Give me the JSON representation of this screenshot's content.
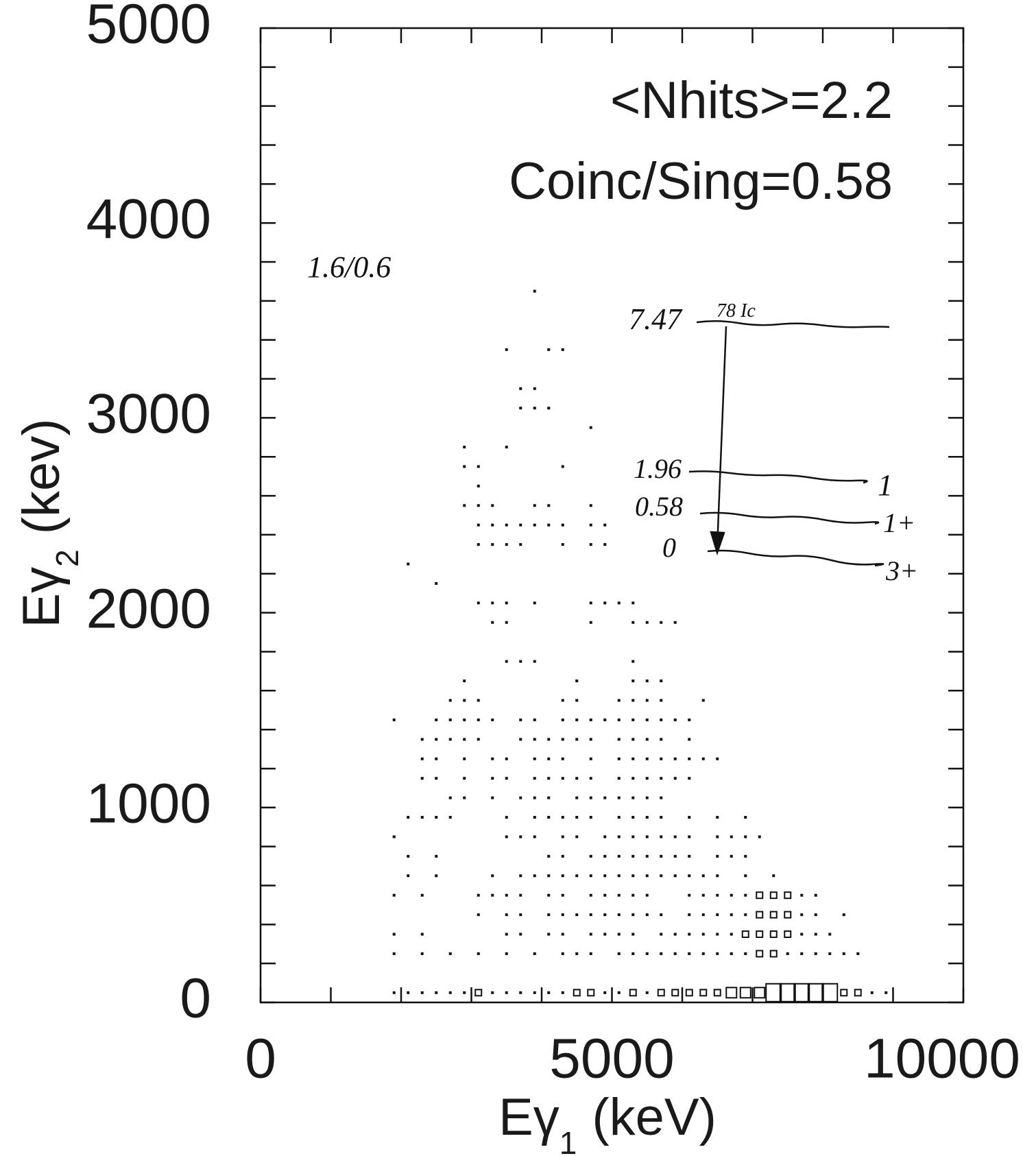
{
  "chart_data": {
    "type": "scatter",
    "xlabel": {
      "text": "Eγ",
      "sub": "1",
      "unit": "(keV)"
    },
    "ylabel": {
      "text": "Eγ",
      "sub": "2",
      "unit": "(kev)"
    },
    "xlim": [
      0,
      10000
    ],
    "ylim": [
      0,
      5000
    ],
    "xticks": [
      0,
      5000,
      10000
    ],
    "yticks": [
      0,
      1000,
      2000,
      3000,
      4000,
      5000
    ],
    "xminorticks": [
      1000,
      2000,
      3000,
      4000,
      6000,
      7000,
      8000,
      9000
    ],
    "yminorticks": [
      200,
      400,
      600,
      800,
      1200,
      1400,
      1600,
      1800,
      2200,
      2400,
      2600,
      2800,
      3200,
      3400,
      3600,
      3800,
      4200,
      4400,
      4600,
      4800
    ],
    "color": "#111111",
    "annotations": [
      "<Nhits>=2.2",
      "Coinc/Sing=0.58",
      "1.6/0.6"
    ],
    "level_diagram": {
      "top": "7.47",
      "top_note": "78 Ic",
      "levels": [
        "1.96",
        "0.58",
        "0"
      ],
      "spins": [
        "1",
        "1+",
        "3+"
      ]
    },
    "rows": [
      {
        "y": 50,
        "x": [
          1900,
          2100,
          2300,
          2500,
          2700,
          2900,
          3100,
          3300,
          3500,
          3700,
          3900,
          4100,
          4300,
          4500,
          4700,
          4900,
          5100,
          5300,
          5500,
          5700,
          5900,
          6100,
          6300,
          6500,
          6700,
          6900,
          7100,
          7300,
          7500,
          7700,
          7900,
          8100,
          8300,
          8500,
          8700,
          8900
        ],
        "counts": [
          1,
          1,
          1,
          1,
          1,
          1,
          2,
          1,
          1,
          1,
          1,
          1,
          1,
          2,
          2,
          1,
          1,
          2,
          1,
          2,
          2,
          2,
          2,
          2,
          3,
          3,
          3,
          4,
          4,
          4,
          4,
          4,
          2,
          2,
          1,
          1
        ]
      },
      {
        "y": 250,
        "x": [
          1900,
          2300,
          2700,
          3100,
          3500,
          3900,
          4300,
          4500,
          4700,
          5100,
          5300,
          5500,
          5700,
          5900,
          6100,
          6300,
          6500,
          6700,
          6900,
          7100,
          7300,
          7500,
          7700,
          7900,
          8100,
          8300,
          8500
        ],
        "counts": [
          1,
          1,
          1,
          1,
          1,
          1,
          1,
          1,
          1,
          1,
          1,
          1,
          1,
          1,
          1,
          1,
          1,
          1,
          1,
          2,
          2,
          1,
          1,
          1,
          1,
          1,
          1
        ]
      },
      {
        "y": 350,
        "x": [
          1900,
          2300,
          3500,
          3700,
          4100,
          4300,
          4700,
          4900,
          5100,
          5300,
          5700,
          5900,
          6100,
          6300,
          6500,
          6700,
          6900,
          7100,
          7300,
          7500,
          7700,
          7900,
          8100
        ],
        "counts": [
          1,
          1,
          1,
          1,
          1,
          1,
          1,
          1,
          1,
          1,
          1,
          1,
          1,
          1,
          1,
          1,
          2,
          2,
          2,
          2,
          1,
          1,
          1
        ]
      },
      {
        "y": 450,
        "x": [
          3100,
          3500,
          3700,
          4100,
          4300,
          4500,
          4700,
          4900,
          5100,
          5300,
          5500,
          5700,
          6100,
          6300,
          6500,
          6700,
          6900,
          7100,
          7300,
          7500,
          7700,
          7900,
          8300
        ],
        "counts": [
          1,
          1,
          1,
          1,
          1,
          1,
          1,
          1,
          1,
          1,
          1,
          1,
          1,
          1,
          1,
          1,
          1,
          2,
          2,
          2,
          1,
          1,
          1
        ]
      },
      {
        "y": 550,
        "x": [
          1900,
          2300,
          3100,
          3300,
          3500,
          3700,
          4100,
          4300,
          4700,
          4900,
          5100,
          5300,
          5500,
          6100,
          6300,
          6500,
          6700,
          6900,
          7100,
          7300,
          7500,
          7700,
          7900
        ],
        "counts": [
          1,
          1,
          1,
          1,
          1,
          1,
          1,
          1,
          1,
          1,
          1,
          1,
          1,
          1,
          1,
          1,
          1,
          1,
          2,
          2,
          2,
          1,
          1
        ]
      },
      {
        "y": 650,
        "x": [
          2100,
          2500,
          3300,
          3700,
          3900,
          4100,
          4300,
          4500,
          4700,
          4900,
          5100,
          5300,
          5500,
          5700,
          5900,
          6100,
          6300,
          6500,
          6900,
          7300
        ],
        "counts": [
          1,
          1,
          1,
          1,
          1,
          1,
          1,
          1,
          1,
          1,
          1,
          1,
          1,
          1,
          1,
          1,
          1,
          1,
          1,
          1
        ]
      },
      {
        "y": 750,
        "x": [
          2100,
          2500,
          4100,
          4300,
          4700,
          4900,
          5100,
          5300,
          5500,
          5700,
          5900,
          6100,
          6500,
          6700,
          6900
        ],
        "counts": [
          1,
          1,
          1,
          1,
          1,
          1,
          1,
          1,
          1,
          1,
          1,
          1,
          1,
          1,
          1
        ]
      },
      {
        "y": 850,
        "x": [
          1900,
          3500,
          3700,
          3900,
          4300,
          4500,
          4900,
          5100,
          5300,
          5500,
          5700,
          5900,
          6100,
          6500,
          6700,
          6900,
          7100
        ],
        "counts": [
          1,
          1,
          1,
          1,
          1,
          1,
          1,
          1,
          1,
          1,
          1,
          1,
          1,
          1,
          1,
          1,
          1
        ]
      },
      {
        "y": 950,
        "x": [
          2100,
          2300,
          2500,
          2700,
          3500,
          3900,
          4100,
          4300,
          4500,
          4700,
          5100,
          5300,
          5500,
          5700,
          6100,
          6500,
          6900
        ],
        "counts": [
          1,
          1,
          1,
          1,
          1,
          1,
          1,
          1,
          1,
          1,
          1,
          1,
          1,
          1,
          1,
          1,
          1
        ]
      },
      {
        "y": 1050,
        "x": [
          2700,
          2900,
          3300,
          3700,
          3900,
          4100,
          4500,
          4700,
          4900,
          5100,
          5300,
          5500,
          5700
        ],
        "counts": [
          1,
          1,
          1,
          1,
          1,
          1,
          1,
          1,
          1,
          1,
          1,
          1,
          1
        ]
      },
      {
        "y": 1150,
        "x": [
          2300,
          2500,
          2900,
          3300,
          3500,
          3900,
          4100,
          4300,
          4500,
          4700,
          5100,
          5300,
          5500,
          5700,
          5900,
          6100
        ],
        "counts": [
          1,
          1,
          1,
          1,
          1,
          1,
          1,
          1,
          1,
          1,
          1,
          1,
          1,
          1,
          1,
          1
        ]
      },
      {
        "y": 1250,
        "x": [
          2300,
          2500,
          2900,
          3300,
          3500,
          3900,
          4100,
          4300,
          4700,
          5100,
          5300,
          5500,
          5700,
          5900,
          6100,
          6300,
          6500
        ],
        "counts": [
          1,
          1,
          1,
          1,
          1,
          1,
          1,
          1,
          1,
          1,
          1,
          1,
          1,
          1,
          1,
          1,
          1
        ]
      },
      {
        "y": 1350,
        "x": [
          2300,
          2500,
          2700,
          2900,
          3100,
          3700,
          3900,
          4100,
          4300,
          4500,
          4700,
          5100,
          5300,
          5500,
          5700,
          6100
        ],
        "counts": [
          1,
          1,
          1,
          1,
          1,
          1,
          1,
          1,
          1,
          1,
          1,
          1,
          1,
          1,
          1,
          1
        ]
      },
      {
        "y": 1450,
        "x": [
          1900,
          2500,
          2700,
          2900,
          3100,
          3300,
          3700,
          3900,
          4300,
          4500,
          4700,
          4900,
          5100,
          5300,
          5500,
          5700,
          5900,
          6100
        ],
        "counts": [
          1,
          1,
          1,
          1,
          1,
          1,
          1,
          1,
          1,
          1,
          1,
          1,
          1,
          1,
          1,
          1,
          1,
          1
        ]
      },
      {
        "y": 1550,
        "x": [
          2700,
          2900,
          3100,
          4300,
          4500,
          5100,
          5300,
          5500,
          5700,
          6300
        ],
        "counts": [
          1,
          1,
          1,
          1,
          1,
          1,
          1,
          1,
          1,
          1
        ]
      },
      {
        "y": 1650,
        "x": [
          2900,
          4500,
          5300,
          5500,
          5700
        ],
        "counts": [
          1,
          1,
          1,
          1,
          1
        ]
      },
      {
        "y": 1750,
        "x": [
          3500,
          3700,
          3900,
          5300
        ],
        "counts": [
          1,
          1,
          1,
          1
        ]
      },
      {
        "y": 1950,
        "x": [
          3300,
          3500,
          4700,
          5300,
          5500,
          5700,
          5900
        ],
        "counts": [
          1,
          1,
          1,
          1,
          1,
          1,
          1
        ]
      },
      {
        "y": 2050,
        "x": [
          3100,
          3300,
          3500,
          3900,
          4700,
          4900,
          5100,
          5300
        ],
        "counts": [
          1,
          1,
          1,
          1,
          1,
          1,
          1,
          1
        ]
      },
      {
        "y": 2150,
        "x": [
          2500
        ],
        "counts": [
          1
        ]
      },
      {
        "y": 2250,
        "x": [
          2100
        ],
        "counts": [
          1
        ]
      },
      {
        "y": 2350,
        "x": [
          3100,
          3300,
          3500,
          3700,
          4300,
          4700,
          4900
        ],
        "counts": [
          1,
          1,
          1,
          1,
          1,
          1,
          1
        ]
      },
      {
        "y": 2450,
        "x": [
          3100,
          3300,
          3500,
          3700,
          3900,
          4100,
          4300,
          4700,
          4900
        ],
        "counts": [
          1,
          1,
          1,
          1,
          1,
          1,
          1,
          1,
          1
        ]
      },
      {
        "y": 2550,
        "x": [
          2900,
          3100,
          3300,
          3900,
          4100,
          4700
        ],
        "counts": [
          1,
          1,
          1,
          1,
          1,
          1
        ]
      },
      {
        "y": 2650,
        "x": [
          3100
        ],
        "counts": [
          1
        ]
      },
      {
        "y": 2750,
        "x": [
          2900,
          3100,
          4300
        ],
        "counts": [
          1,
          1,
          1
        ]
      },
      {
        "y": 2850,
        "x": [
          2900,
          3500
        ],
        "counts": [
          1,
          1
        ]
      },
      {
        "y": 2950,
        "x": [
          4700
        ],
        "counts": [
          1
        ]
      },
      {
        "y": 3050,
        "x": [
          3700,
          3900,
          4100
        ],
        "counts": [
          1,
          1,
          1
        ]
      },
      {
        "y": 3150,
        "x": [
          3700,
          3900
        ],
        "counts": [
          1,
          1
        ]
      },
      {
        "y": 3350,
        "x": [
          3500,
          4100,
          4300
        ],
        "counts": [
          1,
          1,
          1
        ]
      },
      {
        "y": 3650,
        "x": [
          3900
        ],
        "counts": [
          1
        ]
      }
    ]
  }
}
